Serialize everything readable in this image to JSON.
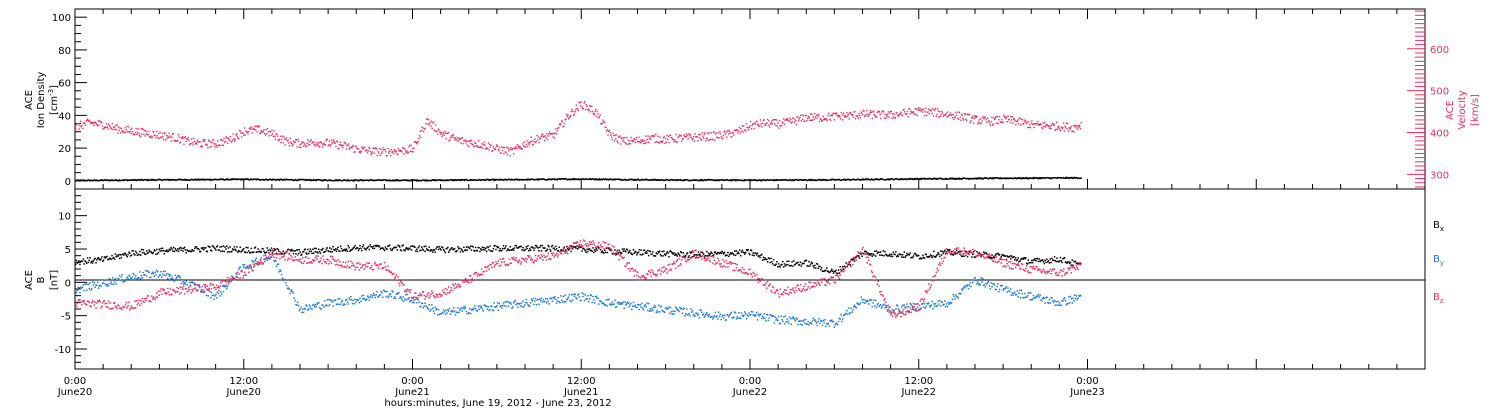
{
  "colors": {
    "black": "#000000",
    "blue": "#1f7ad6",
    "red": "#e8305e"
  },
  "x_axis": {
    "title": "hours:minutes, June 19, 2012 - June 23, 2012",
    "range_hours": [
      0,
      96
    ],
    "ticks": [
      {
        "hour": 0,
        "time": "0:00",
        "date": "June20"
      },
      {
        "hour": 12,
        "time": "12:00",
        "date": "June20"
      },
      {
        "hour": 24,
        "time": "0:00",
        "date": "June21"
      },
      {
        "hour": 36,
        "time": "12:00",
        "date": "June21"
      },
      {
        "hour": 48,
        "time": "0:00",
        "date": "June22"
      },
      {
        "hour": 60,
        "time": "12:00",
        "date": "June22"
      },
      {
        "hour": 72,
        "time": "0:00",
        "date": "June23"
      }
    ]
  },
  "chart_data": [
    {
      "type": "scatter",
      "panel": "top",
      "left_axis_label": [
        "ACE",
        "Ion Density"
      ],
      "left_axis_unit": "[cm",
      "left_axis_unit_sup": "-3",
      "left_axis_unit_end": "]",
      "right_axis_label": [
        "ACE",
        "Velocity"
      ],
      "right_axis_unit": "[km/s]",
      "ylim_left": [
        -5,
        105
      ],
      "ylim_right": [
        265,
        695
      ],
      "left_ticks": [
        "0",
        "20",
        "40",
        "60",
        "80",
        "100"
      ],
      "right_ticks": [
        "300",
        "400",
        "500",
        "600"
      ],
      "series": [
        {
          "axis": "left",
          "color": "#000000",
          "t": [
            0,
            6,
            12,
            18,
            24,
            30,
            36,
            42,
            48,
            54,
            60,
            66,
            71.5
          ],
          "values": [
            0.6,
            1.0,
            1.3,
            0.8,
            0.7,
            1.0,
            1.5,
            0.9,
            0.8,
            1.0,
            1.6,
            2.0,
            2.2
          ]
        },
        {
          "axis": "right",
          "color": "#e8305e",
          "t": [
            0,
            1,
            2,
            3,
            4,
            5,
            6,
            7,
            8,
            9,
            10,
            11,
            12,
            13,
            14,
            15,
            16,
            17,
            18,
            19,
            20,
            21,
            22,
            23,
            24,
            25,
            26,
            27,
            28,
            29,
            30,
            31,
            32,
            33,
            34,
            35,
            36,
            37,
            38,
            39,
            40,
            41,
            42,
            43,
            44,
            45,
            46,
            47,
            48,
            49,
            50,
            51,
            52,
            53,
            54,
            55,
            56,
            57,
            58,
            59,
            60,
            61,
            62,
            63,
            64,
            65,
            66,
            67,
            68,
            69,
            70,
            71,
            71.5
          ],
          "values": [
            415,
            425,
            420,
            410,
            405,
            400,
            395,
            390,
            380,
            375,
            375,
            385,
            405,
            408,
            398,
            380,
            375,
            378,
            376,
            370,
            362,
            357,
            355,
            358,
            362,
            430,
            400,
            385,
            378,
            372,
            362,
            355,
            375,
            388,
            395,
            440,
            470,
            450,
            395,
            380,
            382,
            388,
            385,
            388,
            390,
            392,
            395,
            402,
            418,
            424,
            422,
            428,
            438,
            437,
            440,
            442,
            445,
            444,
            443,
            448,
            452,
            450,
            445,
            440,
            432,
            428,
            433,
            428,
            420,
            418,
            416,
            413,
            420
          ]
        }
      ]
    },
    {
      "type": "scatter",
      "panel": "bottom",
      "left_axis_label": [
        "ACE",
        "B"
      ],
      "left_axis_unit": "[nT]",
      "ylim": [
        -13,
        14
      ],
      "ticks": [
        "10",
        "5",
        "0",
        "-5",
        "-10"
      ],
      "series": [
        {
          "name": "B",
          "name_sub": "x",
          "color": "#000000",
          "t": [
            0,
            2,
            4,
            6,
            8,
            10,
            12,
            14,
            16,
            18,
            20,
            22,
            24,
            26,
            28,
            30,
            32,
            34,
            36,
            38,
            40,
            42,
            44,
            46,
            48,
            50,
            52,
            54,
            56,
            58,
            60,
            62,
            64,
            66,
            68,
            70,
            71.5
          ],
          "values": [
            3.2,
            3.5,
            4.5,
            4.8,
            5.0,
            5.2,
            5.0,
            4.8,
            4.6,
            5.0,
            5.3,
            5.3,
            5.2,
            5.0,
            5.1,
            5.2,
            5.2,
            5.2,
            5.1,
            4.8,
            4.6,
            4.4,
            4.2,
            4.4,
            4.6,
            2.8,
            3.0,
            1.5,
            4.5,
            4.4,
            4.0,
            4.6,
            4.3,
            4.0,
            3.2,
            3.6,
            2.6
          ]
        },
        {
          "name": "B",
          "name_sub": "y",
          "color": "#1f7ad6",
          "t": [
            0,
            2,
            4,
            6,
            8,
            10,
            12,
            14,
            16,
            18,
            20,
            22,
            24,
            26,
            28,
            30,
            32,
            34,
            36,
            38,
            40,
            42,
            44,
            46,
            48,
            50,
            52,
            54,
            56,
            58,
            60,
            62,
            64,
            66,
            68,
            70,
            71.5
          ],
          "values": [
            -1.0,
            0.0,
            1.0,
            1.5,
            0.0,
            -2.0,
            2.5,
            4.0,
            -4.0,
            -3.0,
            -2.5,
            -1.5,
            -2.5,
            -4.5,
            -4.0,
            -3.5,
            -3.0,
            -2.5,
            -2.0,
            -3.0,
            -3.5,
            -4.0,
            -4.5,
            -5.0,
            -4.8,
            -5.5,
            -5.8,
            -6.0,
            -2.5,
            -4.0,
            -3.5,
            -3.0,
            0.5,
            -1.0,
            -2.0,
            -3.0,
            -2.0
          ]
        },
        {
          "name": "B",
          "name_sub": "z",
          "color": "#e8305e",
          "t": [
            0,
            2,
            4,
            6,
            8,
            10,
            12,
            14,
            16,
            18,
            20,
            22,
            24,
            26,
            28,
            30,
            32,
            34,
            36,
            38,
            40,
            42,
            44,
            46,
            48,
            50,
            52,
            54,
            56,
            58,
            60,
            62,
            64,
            66,
            68,
            70,
            71.5
          ],
          "values": [
            -3.0,
            -3.2,
            -3.5,
            -1.5,
            -1.0,
            -0.5,
            1.5,
            4.5,
            3.5,
            3.5,
            2.5,
            2.5,
            -2.0,
            -1.5,
            0.5,
            3.0,
            3.5,
            4.0,
            6.0,
            5.5,
            1.0,
            2.0,
            4.5,
            3.0,
            1.5,
            -1.5,
            -0.5,
            0.5,
            5.0,
            -5.0,
            -3.5,
            5.0,
            4.5,
            3.0,
            2.0,
            1.5,
            2.5
          ]
        }
      ]
    }
  ]
}
